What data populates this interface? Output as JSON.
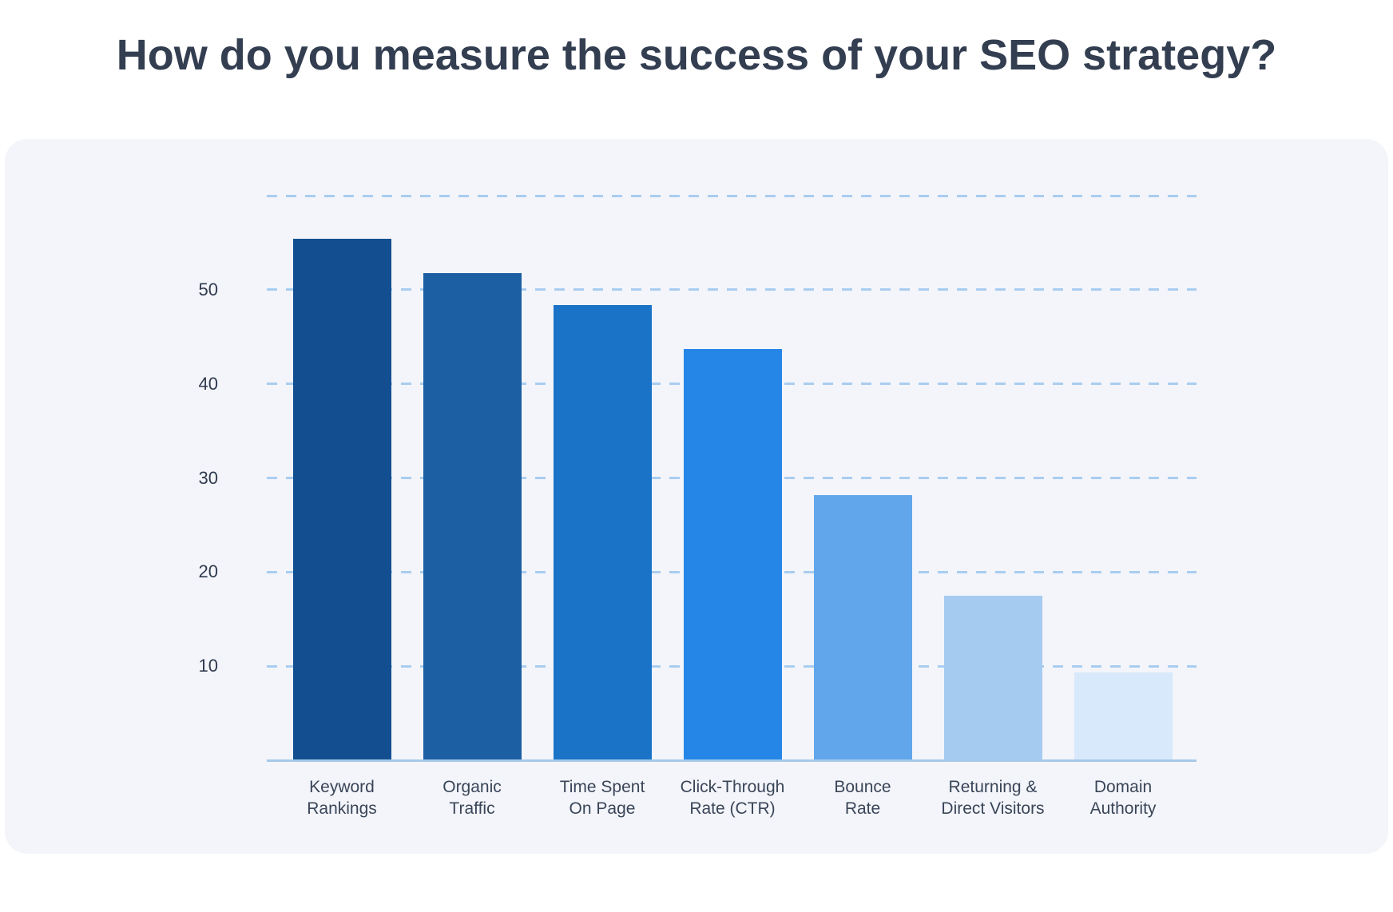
{
  "page": {
    "title": "How do you measure the success of your SEO strategy?"
  },
  "chart_data": {
    "type": "bar",
    "title": "How do you measure the success of your SEO strategy?",
    "categories": [
      "Keyword Rankings",
      "Organic Traffic",
      "Time Spent On Page",
      "Click-Through Rate (CTR)",
      "Bounce Rate",
      "Returning & Direct Visitors",
      "Domain Authority"
    ],
    "category_lines": [
      [
        "Keyword",
        "Rankings"
      ],
      [
        "Organic",
        "Traffic"
      ],
      [
        "Time Spent",
        "On Page"
      ],
      [
        "Click-Through",
        "Rate (CTR)"
      ],
      [
        "Bounce",
        "Rate"
      ],
      [
        "Returning &",
        "Direct Visitors"
      ],
      [
        "Domain",
        "Authority"
      ]
    ],
    "values": [
      55.4,
      51.8,
      48.4,
      43.7,
      28.2,
      17.5,
      9.3
    ],
    "bar_colors": [
      "#134f90",
      "#1c5fa3",
      "#1a73c6",
      "#2586e8",
      "#61a6ea",
      "#a6cbf1",
      "#d9e9fc"
    ],
    "yticks": [
      10,
      20,
      30,
      40,
      50
    ],
    "gridline_values": [
      10,
      20,
      30,
      40,
      50,
      60
    ],
    "ylim": [
      0,
      60
    ],
    "xlabel": "",
    "ylabel": "",
    "legend": "none",
    "grid": "horizontal-dashed",
    "colors": {
      "grid": "#a9cdf0",
      "axis": "#a6c9e9",
      "tick_text": "#2f3a4e",
      "category_text": "#3a4558",
      "title_text": "#333e51",
      "card_bg": "#f3f5fa",
      "page_bg": "#ffffff"
    }
  }
}
